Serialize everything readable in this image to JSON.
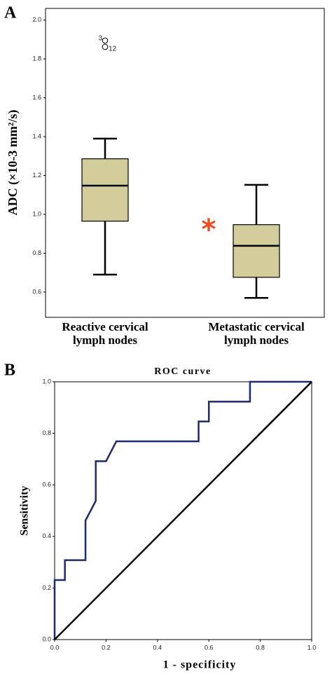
{
  "chart_data": [
    {
      "type": "box",
      "panel_label": "A",
      "y_label": "ADC (×10-3 mm²/s)",
      "categories": [
        "Reactive cervical lymph nodes",
        "Metastatic cervical lymph nodes"
      ],
      "boxes": [
        {
          "min": 0.69,
          "q1": 0.965,
          "median": 1.148,
          "q3": 1.286,
          "max": 1.39,
          "outliers": [
            {
              "value": 1.88,
              "label": "3"
            },
            {
              "value": 1.88,
              "label": "12"
            }
          ]
        },
        {
          "min": 0.57,
          "q1": 0.676,
          "median": 0.838,
          "q3": 0.947,
          "max": 1.152,
          "outliers": []
        }
      ],
      "color": "#d3cd9c",
      "annotation": {
        "text": "*",
        "color": "#f04a1c"
      },
      "ylim": [
        0.47,
        2.06
      ],
      "yticks": [
        0.6,
        0.8,
        {
          "value": 1,
          "label": "1.0"
        },
        1.2,
        1.4,
        1.6,
        1.8,
        {
          "value": 2,
          "label": "2.0"
        }
      ]
    },
    {
      "type": "line",
      "panel_label": "B",
      "title": "ROC curve",
      "x_label": "1 - specificity",
      "y_label": "Sensitivity",
      "series": [
        {
          "color": "#1f2a6e",
          "x": [
            0,
            0,
            0.04,
            0.04,
            0.12,
            0.12,
            0.16,
            0.16,
            0.2,
            0.24,
            0.56,
            0.56,
            0.6,
            0.6,
            0.76,
            0.76,
            1
          ],
          "y": [
            0,
            0.231,
            0.231,
            0.308,
            0.308,
            0.462,
            0.538,
            0.692,
            0.692,
            0.769,
            0.769,
            0.846,
            0.846,
            0.923,
            0.923,
            1,
            1
          ]
        },
        {
          "color": "#000000",
          "x": [
            0,
            1
          ],
          "y": [
            0,
            1
          ]
        }
      ],
      "xlim": [
        0,
        1
      ],
      "ylim": [
        0,
        1
      ],
      "xticks": [
        {
          "value": 0,
          "label": "0.0"
        },
        0.2,
        0.4,
        0.6,
        0.8,
        {
          "value": 1,
          "label": "1.0"
        }
      ],
      "yticks": [
        {
          "value": 0,
          "label": "0.0"
        },
        0.2,
        0.4,
        0.6,
        0.8,
        {
          "value": 1,
          "label": "1.0"
        }
      ]
    }
  ]
}
